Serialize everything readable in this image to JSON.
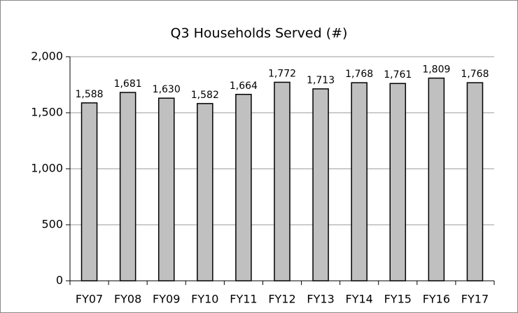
{
  "chart_data": {
    "type": "bar",
    "title": "Q3 Households Served (#)",
    "categories": [
      "FY07",
      "FY08",
      "FY09",
      "FY10",
      "FY11",
      "FY12",
      "FY13",
      "FY14",
      "FY15",
      "FY16",
      "FY17"
    ],
    "values": [
      1588,
      1681,
      1630,
      1582,
      1664,
      1772,
      1713,
      1768,
      1761,
      1809,
      1768
    ],
    "value_labels": [
      "1,588",
      "1,681",
      "1,630",
      "1,582",
      "1,664",
      "1,772",
      "1,713",
      "1,768",
      "1,761",
      "1,809",
      "1,768"
    ],
    "color": "#c0c0c0",
    "ylim": [
      0,
      2000
    ],
    "yticks": [
      0,
      500,
      {
        "value": 1000,
        "label": "1,000"
      },
      {
        "value": 1500,
        "label": "1,500"
      },
      {
        "value": 2000,
        "label": "2,000"
      }
    ],
    "grid": true
  }
}
